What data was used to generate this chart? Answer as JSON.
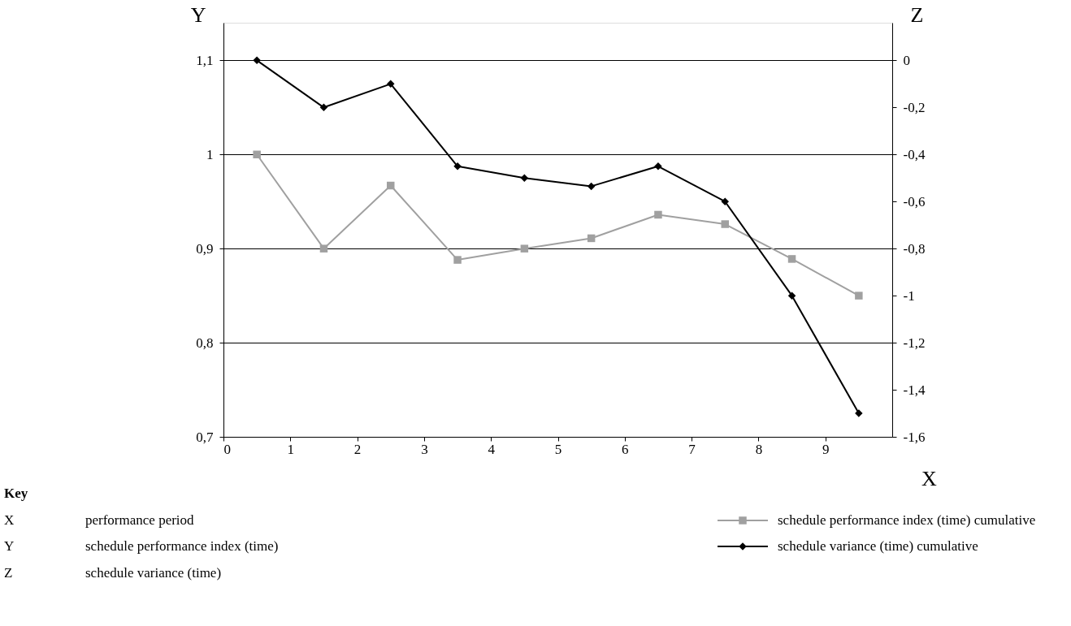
{
  "chart_data": {
    "type": "line",
    "xlabel": "X",
    "ylabel": "Y",
    "y2label": "Z",
    "x": [
      0.5,
      1.5,
      2.5,
      3.5,
      4.5,
      5.5,
      6.5,
      7.5,
      8.5,
      9.5
    ],
    "series": [
      {
        "name": "schedule performance index (time) cumulative",
        "color": "#a0a0a0",
        "marker": "square",
        "values": [
          1.0,
          0.9,
          0.967,
          0.888,
          0.9,
          0.911,
          0.936,
          0.926,
          0.889,
          0.85
        ]
      },
      {
        "name": "schedule variance (time) cumulative",
        "color": "#000000",
        "marker": "diamond",
        "axis": "y2",
        "values": [
          0,
          -0.2,
          -0.1,
          -0.45,
          -0.5,
          -0.535,
          -0.45,
          -0.6,
          -1.0,
          -1.5
        ]
      }
    ],
    "xlim": [
      0,
      10
    ],
    "xticks": [
      0,
      1,
      2,
      3,
      4,
      5,
      6,
      7,
      8,
      9
    ],
    "ylim": [
      0.7,
      1.14
    ],
    "yticks": [
      {
        "value": 0.7,
        "label": "0,7"
      },
      {
        "value": 0.8,
        "label": "0,8"
      },
      {
        "value": 0.9,
        "label": "0,9"
      },
      1,
      {
        "value": 1.1,
        "label": "1,1"
      }
    ],
    "y2lim": [
      -1.6,
      0.16
    ],
    "y2ticks": [
      {
        "value": -1.6,
        "label": "-1,6"
      },
      {
        "value": -1.4,
        "label": "-1,4"
      },
      {
        "value": -1.2,
        "label": "-1,2"
      },
      -1,
      {
        "value": -0.8,
        "label": "-0,8"
      },
      {
        "value": -0.6,
        "label": "-0,6"
      },
      {
        "value": -0.4,
        "label": "-0,4"
      },
      {
        "value": -0.2,
        "label": "-0,2"
      },
      0
    ],
    "grid": "y",
    "legend": "bottom right",
    "line_style": "solid",
    "annotations": [
      "Key",
      "X",
      "performance period",
      "Y",
      "schedule performance index (time)",
      "Z",
      "schedule variance (time)"
    ]
  }
}
